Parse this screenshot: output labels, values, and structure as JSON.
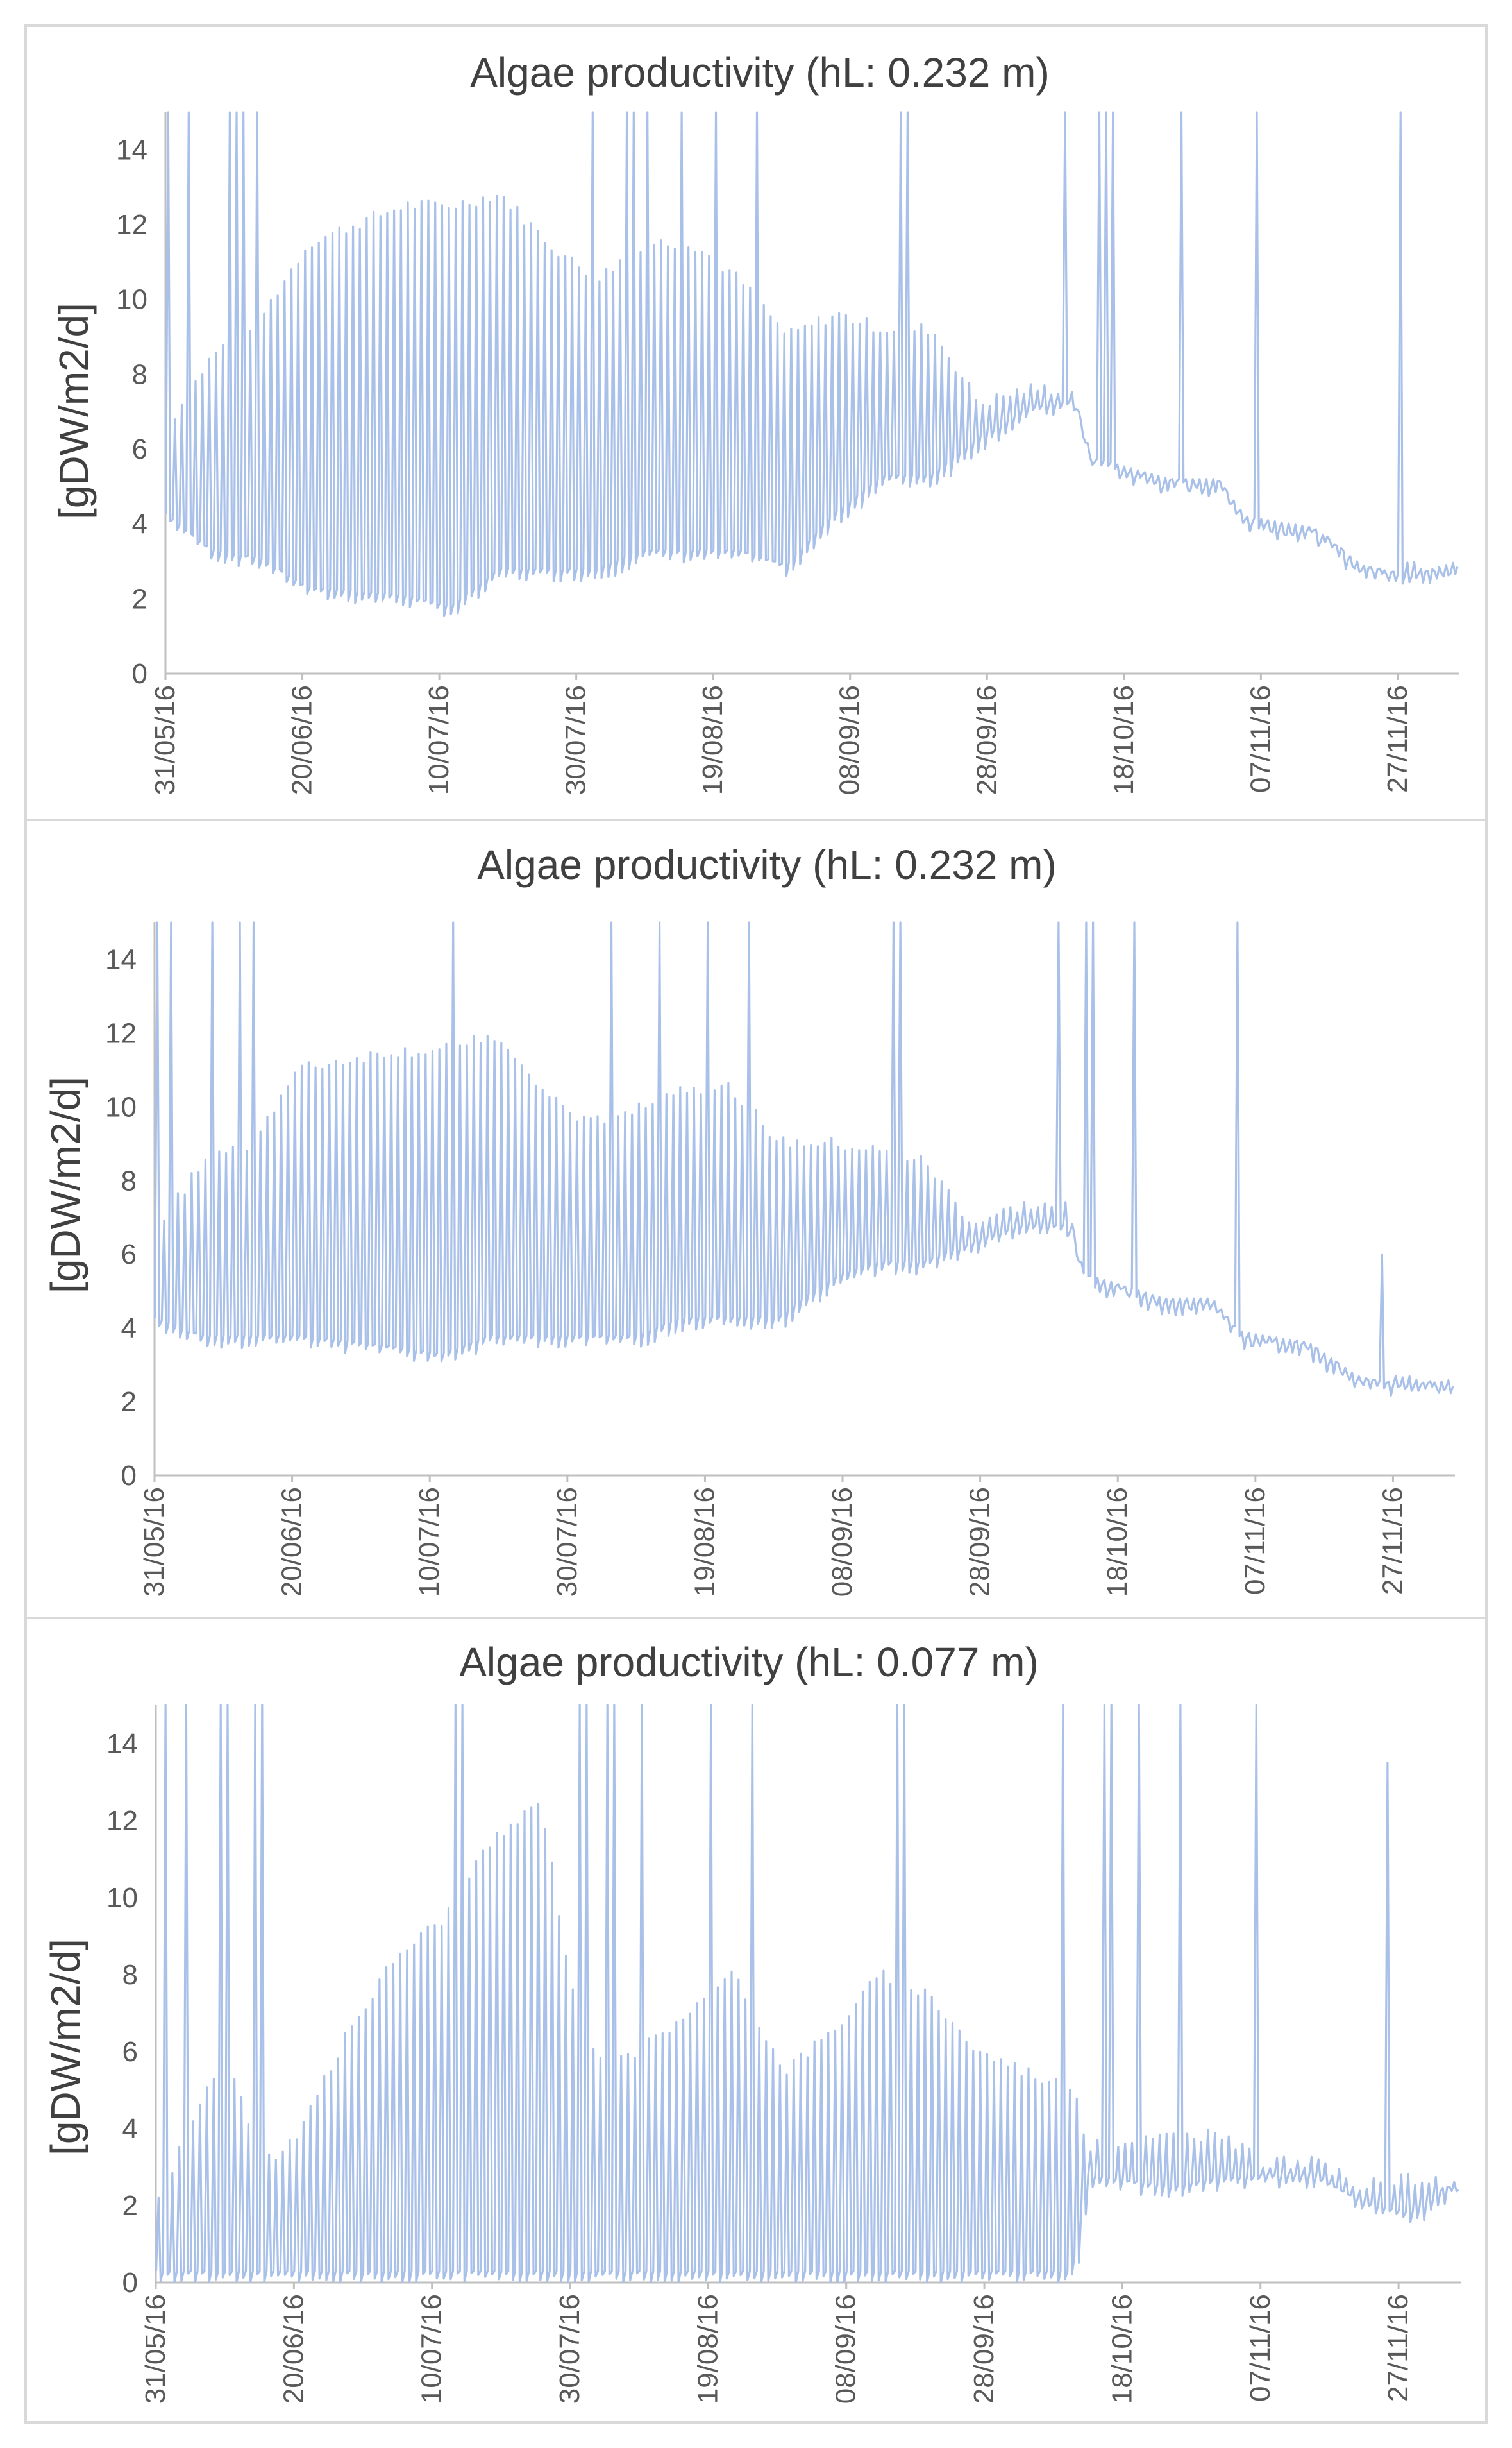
{
  "chart_data": [
    {
      "type": "line",
      "title": "Algae productivity (hL: 0.232 m)",
      "ylabel": "[gDW/m2/d]",
      "xlabel": "",
      "ylim": [
        0,
        15
      ],
      "y_ticks": [
        0,
        2,
        4,
        6,
        8,
        10,
        12,
        14
      ],
      "x_range_days": [
        0,
        189
      ],
      "x_tick_labels": [
        "31/05/16",
        "20/06/16",
        "10/07/16",
        "30/07/16",
        "19/08/16",
        "08/09/16",
        "28/09/16",
        "18/10/16",
        "07/11/16",
        "27/11/16"
      ],
      "series_color": "#a9c0e8",
      "series": [
        {
          "name": "Algae productivity",
          "daily_high": [
            [
              0,
              6.5
            ],
            [
              7,
              8.5
            ],
            [
              14,
              9.5
            ],
            [
              21,
              11.5
            ],
            [
              35,
              12.5
            ],
            [
              42,
              12.5
            ],
            [
              49,
              12.8
            ],
            [
              56,
              11.5
            ],
            [
              63,
              10.5
            ],
            [
              70,
              11.5
            ],
            [
              77,
              11.5
            ],
            [
              84,
              10.5
            ],
            [
              91,
              9.0
            ],
            [
              98,
              9.6
            ],
            [
              105,
              9.2
            ],
            [
              112,
              9.2
            ],
            [
              119,
              7.2
            ],
            [
              126,
              7.6
            ],
            [
              133,
              7.6
            ],
            [
              135,
              5.5
            ],
            [
              147,
              4.9
            ],
            [
              154,
              4.9
            ],
            [
              158,
              3.9
            ],
            [
              168,
              3.6
            ],
            [
              175,
              2.6
            ],
            [
              182,
              3.0
            ],
            [
              189,
              2.7
            ]
          ],
          "daily_low": [
            [
              0,
              4.0
            ],
            [
              7,
              3.0
            ],
            [
              14,
              2.8
            ],
            [
              21,
              2.0
            ],
            [
              35,
              1.8
            ],
            [
              42,
              1.5
            ],
            [
              49,
              2.5
            ],
            [
              56,
              2.5
            ],
            [
              63,
              2.5
            ],
            [
              70,
              3.0
            ],
            [
              77,
              3.0
            ],
            [
              84,
              3.0
            ],
            [
              91,
              2.6
            ],
            [
              98,
              4.0
            ],
            [
              105,
              5.0
            ],
            [
              112,
              5.0
            ],
            [
              119,
              6.0
            ],
            [
              126,
              6.8
            ],
            [
              133,
              7.0
            ],
            [
              135,
              5.5
            ],
            [
              147,
              4.9
            ],
            [
              154,
              4.9
            ],
            [
              158,
              3.9
            ],
            [
              168,
              3.6
            ],
            [
              175,
              2.6
            ],
            [
              182,
              2.3
            ],
            [
              189,
              2.7
            ]
          ],
          "spikes": [
            [
              0,
              15
            ],
            [
              3,
              15
            ],
            [
              9,
              15
            ],
            [
              10,
              15
            ],
            [
              11,
              15
            ],
            [
              13,
              15
            ],
            [
              62,
              15
            ],
            [
              67,
              15
            ],
            [
              68,
              15
            ],
            [
              70,
              15
            ],
            [
              75,
              15
            ],
            [
              80,
              15
            ],
            [
              86,
              15
            ],
            [
              107,
              15
            ],
            [
              108,
              15
            ],
            [
              131,
              15
            ],
            [
              136,
              15
            ],
            [
              137,
              15
            ],
            [
              138,
              15
            ],
            [
              148,
              15
            ],
            [
              159,
              15
            ],
            [
              180,
              15
            ]
          ]
        }
      ]
    },
    {
      "type": "line",
      "title": "Algae productivity (hL: 0.232 m)",
      "ylabel": "[gDW/m2/d]",
      "xlabel": "",
      "ylim": [
        0,
        15
      ],
      "y_ticks": [
        0,
        2,
        4,
        6,
        8,
        10,
        12,
        14
      ],
      "x_range_days": [
        0,
        189
      ],
      "x_tick_labels": [
        "31/05/16",
        "20/06/16",
        "10/07/16",
        "30/07/16",
        "19/08/16",
        "08/09/16",
        "28/09/16",
        "18/10/16",
        "07/11/16",
        "27/11/16"
      ],
      "series_color": "#a9c0e8",
      "series": [
        {
          "name": "Algae productivity",
          "daily_high": [
            [
              0,
              6.5
            ],
            [
              7,
              8.5
            ],
            [
              14,
              9.0
            ],
            [
              21,
              11.0
            ],
            [
              35,
              11.5
            ],
            [
              42,
              11.5
            ],
            [
              49,
              12.0
            ],
            [
              56,
              10.5
            ],
            [
              63,
              9.5
            ],
            [
              70,
              10.0
            ],
            [
              77,
              10.5
            ],
            [
              84,
              10.5
            ],
            [
              91,
              9.0
            ],
            [
              98,
              9.0
            ],
            [
              105,
              8.8
            ],
            [
              112,
              8.5
            ],
            [
              119,
              6.8
            ],
            [
              126,
              7.3
            ],
            [
              133,
              7.3
            ],
            [
              135,
              5.2
            ],
            [
              147,
              4.5
            ],
            [
              154,
              4.5
            ],
            [
              158,
              3.6
            ],
            [
              168,
              3.3
            ],
            [
              175,
              2.4
            ],
            [
              182,
              2.8
            ],
            [
              189,
              2.3
            ]
          ],
          "daily_low": [
            [
              0,
              4.0
            ],
            [
              7,
              3.5
            ],
            [
              14,
              3.5
            ],
            [
              21,
              3.5
            ],
            [
              35,
              3.2
            ],
            [
              42,
              3.0
            ],
            [
              49,
              3.5
            ],
            [
              56,
              3.5
            ],
            [
              63,
              3.5
            ],
            [
              70,
              3.5
            ],
            [
              77,
              4.0
            ],
            [
              84,
              4.0
            ],
            [
              91,
              4.0
            ],
            [
              98,
              5.0
            ],
            [
              105,
              5.5
            ],
            [
              112,
              5.5
            ],
            [
              119,
              6.0
            ],
            [
              126,
              6.5
            ],
            [
              133,
              6.5
            ],
            [
              135,
              5.2
            ],
            [
              147,
              4.5
            ],
            [
              154,
              4.5
            ],
            [
              158,
              3.6
            ],
            [
              168,
              3.3
            ],
            [
              175,
              2.4
            ],
            [
              182,
              2.1
            ],
            [
              189,
              2.3
            ]
          ],
          "spikes": [
            [
              0,
              15
            ],
            [
              2,
              15
            ],
            [
              8,
              15
            ],
            [
              12,
              15
            ],
            [
              14,
              15
            ],
            [
              43,
              15
            ],
            [
              66,
              15
            ],
            [
              73,
              15
            ],
            [
              80,
              15
            ],
            [
              86,
              15
            ],
            [
              107,
              15
            ],
            [
              108,
              15
            ],
            [
              131,
              15
            ],
            [
              135,
              15
            ],
            [
              136,
              15
            ],
            [
              142,
              15
            ],
            [
              157,
              15
            ],
            [
              178,
              6.0
            ]
          ]
        }
      ]
    },
    {
      "type": "line",
      "title": "Algae productivity (hL: 0.077 m)",
      "ylabel": "[gDW/m2/d]",
      "xlabel": "",
      "ylim": [
        0,
        15
      ],
      "y_ticks": [
        0,
        2,
        4,
        6,
        8,
        10,
        12,
        14
      ],
      "x_range_days": [
        0,
        189
      ],
      "x_tick_labels": [
        "31/05/16",
        "20/06/16",
        "10/07/16",
        "30/07/16",
        "19/08/16",
        "08/09/16",
        "28/09/16",
        "18/10/16",
        "07/11/16",
        "27/11/16"
      ],
      "series_color": "#a9c0e8",
      "series": [
        {
          "name": "Algae productivity",
          "daily_high": [
            [
              0,
              2.0
            ],
            [
              5,
              4.0
            ],
            [
              10,
              6.0
            ],
            [
              14,
              4.0
            ],
            [
              17,
              3.0
            ],
            [
              21,
              4.0
            ],
            [
              28,
              6.5
            ],
            [
              35,
              8.5
            ],
            [
              42,
              9.5
            ],
            [
              49,
              11.5
            ],
            [
              56,
              12.5
            ],
            [
              60,
              8.0
            ],
            [
              63,
              6.0
            ],
            [
              70,
              6.0
            ],
            [
              77,
              7.0
            ],
            [
              84,
              8.0
            ],
            [
              91,
              5.5
            ],
            [
              98,
              6.5
            ],
            [
              105,
              8.0
            ],
            [
              112,
              7.5
            ],
            [
              119,
              6.0
            ],
            [
              126,
              5.5
            ],
            [
              133,
              5.0
            ],
            [
              135,
              3.5
            ],
            [
              147,
              3.8
            ],
            [
              154,
              3.8
            ],
            [
              161,
              3.1
            ],
            [
              168,
              3.1
            ],
            [
              175,
              2.5
            ],
            [
              182,
              2.7
            ],
            [
              189,
              2.5
            ]
          ],
          "daily_low": [
            [
              0,
              0
            ],
            [
              7,
              0
            ],
            [
              14,
              0
            ],
            [
              21,
              0
            ],
            [
              28,
              0
            ],
            [
              35,
              0
            ],
            [
              42,
              0
            ],
            [
              49,
              0
            ],
            [
              56,
              0
            ],
            [
              63,
              0
            ],
            [
              70,
              0
            ],
            [
              77,
              0
            ],
            [
              84,
              0
            ],
            [
              91,
              0
            ],
            [
              98,
              0
            ],
            [
              105,
              0
            ],
            [
              112,
              0
            ],
            [
              119,
              0
            ],
            [
              126,
              0
            ],
            [
              133,
              0
            ],
            [
              135,
              2.5
            ],
            [
              147,
              2.2
            ],
            [
              154,
              2.4
            ],
            [
              161,
              2.5
            ],
            [
              168,
              2.5
            ],
            [
              175,
              1.8
            ],
            [
              182,
              1.5
            ],
            [
              189,
              2.4
            ]
          ],
          "spikes": [
            [
              1,
              15
            ],
            [
              4,
              15
            ],
            [
              9,
              15
            ],
            [
              10,
              15
            ],
            [
              14,
              15
            ],
            [
              15,
              15
            ],
            [
              43,
              15
            ],
            [
              44,
              15
            ],
            [
              61,
              15
            ],
            [
              62,
              15
            ],
            [
              65,
              15
            ],
            [
              66,
              15
            ],
            [
              70,
              15
            ],
            [
              80,
              15
            ],
            [
              86,
              15
            ],
            [
              107,
              15
            ],
            [
              108,
              15
            ],
            [
              131,
              15
            ],
            [
              137,
              15
            ],
            [
              138,
              15
            ],
            [
              142,
              15
            ],
            [
              148,
              15
            ],
            [
              159,
              15
            ],
            [
              178,
              13.5
            ]
          ]
        }
      ]
    }
  ]
}
